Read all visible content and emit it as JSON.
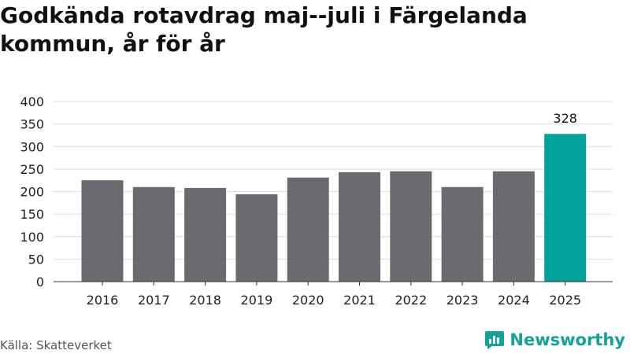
{
  "title": "Godkända rotavdrag maj--juli i Färgelanda kommun, år för år",
  "source": "Källa: Skatteverket",
  "brand": {
    "name": "Newsworthy",
    "icon": "newsworthy-logo-icon",
    "color": "#12a29a"
  },
  "chart_data": {
    "type": "bar",
    "categories": [
      "2016",
      "2017",
      "2018",
      "2019",
      "2020",
      "2021",
      "2022",
      "2023",
      "2024",
      "2025"
    ],
    "values": [
      225,
      210,
      208,
      194,
      231,
      243,
      245,
      210,
      245,
      328
    ],
    "labels": [
      null,
      null,
      null,
      null,
      null,
      null,
      null,
      null,
      null,
      "328"
    ],
    "highlight_index": 9,
    "colors": {
      "default": "#6b6a70",
      "highlight": "#00a29a",
      "grid": "#dddddd",
      "axis": "#333333"
    },
    "ylim": [
      0,
      400
    ],
    "yticks": [
      0,
      50,
      100,
      150,
      200,
      250,
      300,
      350,
      400
    ],
    "xlabel": "",
    "ylabel": "",
    "grid": true
  }
}
